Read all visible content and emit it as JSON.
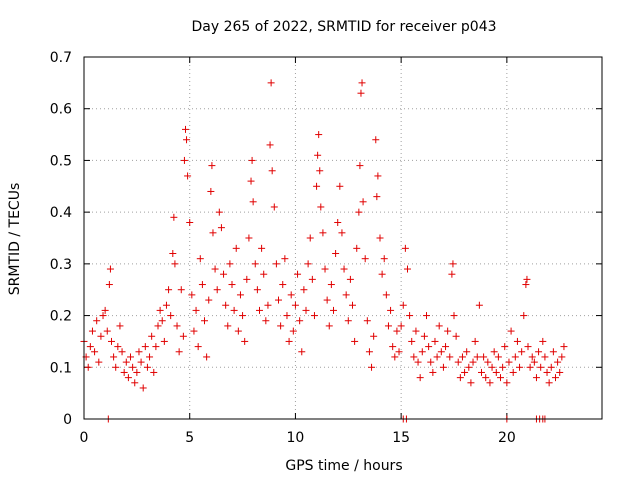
{
  "chart_data": {
    "type": "scatter",
    "title": "Day 265 of 2022, SRMTID for receiver p043",
    "xlabel": "GPS time / hours",
    "ylabel": "SRMTID / TECUs",
    "xlim": [
      0,
      24.5
    ],
    "ylim": [
      0,
      0.7
    ],
    "xticks": [
      0,
      5,
      10,
      15,
      20
    ],
    "yticks": [
      0,
      0.1,
      0.2,
      0.3,
      0.4,
      0.5,
      0.6,
      0.7
    ],
    "xtick_labels": [
      "0",
      "5",
      "10",
      "15",
      "20"
    ],
    "ytick_labels": [
      "0",
      "0.1",
      "0.2",
      "0.3",
      "0.4",
      "0.5",
      "0.6",
      "0.7"
    ],
    "grid": true,
    "marker": "plus",
    "color": "#e00000",
    "series": [
      {
        "name": "SRMTID",
        "points": [
          [
            0.0,
            0.15
          ],
          [
            0.1,
            0.12
          ],
          [
            0.2,
            0.1
          ],
          [
            0.3,
            0.14
          ],
          [
            0.4,
            0.17
          ],
          [
            0.5,
            0.13
          ],
          [
            0.6,
            0.19
          ],
          [
            0.7,
            0.11
          ],
          [
            0.8,
            0.16
          ],
          [
            0.9,
            0.2
          ],
          [
            1.0,
            0.21
          ],
          [
            1.1,
            0.17
          ],
          [
            1.2,
            0.26
          ],
          [
            1.25,
            0.29
          ],
          [
            1.3,
            0.15
          ],
          [
            1.4,
            0.12
          ],
          [
            1.5,
            0.1
          ],
          [
            1.6,
            0.14
          ],
          [
            1.7,
            0.18
          ],
          [
            1.8,
            0.13
          ],
          [
            1.9,
            0.09
          ],
          [
            2.0,
            0.11
          ],
          [
            2.1,
            0.08
          ],
          [
            2.2,
            0.12
          ],
          [
            2.3,
            0.1
          ],
          [
            2.4,
            0.07
          ],
          [
            2.5,
            0.09
          ],
          [
            2.6,
            0.13
          ],
          [
            2.7,
            0.11
          ],
          [
            2.8,
            0.06
          ],
          [
            2.9,
            0.14
          ],
          [
            3.0,
            0.1
          ],
          [
            3.1,
            0.12
          ],
          [
            3.2,
            0.16
          ],
          [
            3.3,
            0.09
          ],
          [
            3.4,
            0.14
          ],
          [
            3.5,
            0.18
          ],
          [
            3.6,
            0.21
          ],
          [
            3.7,
            0.19
          ],
          [
            3.8,
            0.15
          ],
          [
            3.9,
            0.22
          ],
          [
            4.0,
            0.25
          ],
          [
            4.1,
            0.2
          ],
          [
            4.2,
            0.32
          ],
          [
            4.25,
            0.39
          ],
          [
            4.3,
            0.3
          ],
          [
            4.4,
            0.18
          ],
          [
            4.5,
            0.13
          ],
          [
            4.6,
            0.25
          ],
          [
            4.7,
            0.16
          ],
          [
            4.75,
            0.5
          ],
          [
            4.8,
            0.56
          ],
          [
            4.85,
            0.54
          ],
          [
            4.9,
            0.47
          ],
          [
            5.0,
            0.38
          ],
          [
            5.1,
            0.24
          ],
          [
            5.2,
            0.17
          ],
          [
            5.3,
            0.21
          ],
          [
            5.4,
            0.14
          ],
          [
            5.5,
            0.31
          ],
          [
            5.6,
            0.26
          ],
          [
            5.7,
            0.19
          ],
          [
            5.8,
            0.12
          ],
          [
            5.9,
            0.23
          ],
          [
            6.0,
            0.44
          ],
          [
            6.05,
            0.49
          ],
          [
            6.1,
            0.36
          ],
          [
            6.2,
            0.29
          ],
          [
            6.3,
            0.25
          ],
          [
            6.4,
            0.4
          ],
          [
            6.5,
            0.37
          ],
          [
            6.6,
            0.28
          ],
          [
            6.7,
            0.22
          ],
          [
            6.8,
            0.18
          ],
          [
            6.9,
            0.3
          ],
          [
            7.0,
            0.26
          ],
          [
            7.1,
            0.21
          ],
          [
            7.2,
            0.33
          ],
          [
            7.3,
            0.17
          ],
          [
            7.4,
            0.24
          ],
          [
            7.5,
            0.2
          ],
          [
            7.6,
            0.15
          ],
          [
            7.7,
            0.27
          ],
          [
            7.8,
            0.35
          ],
          [
            7.9,
            0.46
          ],
          [
            7.95,
            0.5
          ],
          [
            8.0,
            0.42
          ],
          [
            8.1,
            0.3
          ],
          [
            8.2,
            0.25
          ],
          [
            8.3,
            0.21
          ],
          [
            8.4,
            0.33
          ],
          [
            8.5,
            0.28
          ],
          [
            8.6,
            0.19
          ],
          [
            8.7,
            0.22
          ],
          [
            8.8,
            0.53
          ],
          [
            8.85,
            0.65
          ],
          [
            8.9,
            0.48
          ],
          [
            9.0,
            0.41
          ],
          [
            9.1,
            0.3
          ],
          [
            9.2,
            0.23
          ],
          [
            9.3,
            0.18
          ],
          [
            9.4,
            0.26
          ],
          [
            9.5,
            0.31
          ],
          [
            9.6,
            0.2
          ],
          [
            9.7,
            0.15
          ],
          [
            9.8,
            0.24
          ],
          [
            9.9,
            0.17
          ],
          [
            10.0,
            0.22
          ],
          [
            10.1,
            0.28
          ],
          [
            10.2,
            0.19
          ],
          [
            10.3,
            0.13
          ],
          [
            10.4,
            0.25
          ],
          [
            10.5,
            0.21
          ],
          [
            10.6,
            0.3
          ],
          [
            10.7,
            0.35
          ],
          [
            10.8,
            0.27
          ],
          [
            10.9,
            0.2
          ],
          [
            11.0,
            0.45
          ],
          [
            11.05,
            0.51
          ],
          [
            11.1,
            0.55
          ],
          [
            11.15,
            0.48
          ],
          [
            11.2,
            0.41
          ],
          [
            11.3,
            0.36
          ],
          [
            11.4,
            0.29
          ],
          [
            11.5,
            0.23
          ],
          [
            11.6,
            0.18
          ],
          [
            11.7,
            0.26
          ],
          [
            11.8,
            0.21
          ],
          [
            11.9,
            0.32
          ],
          [
            12.0,
            0.38
          ],
          [
            12.1,
            0.45
          ],
          [
            12.2,
            0.36
          ],
          [
            12.3,
            0.29
          ],
          [
            12.4,
            0.24
          ],
          [
            12.5,
            0.19
          ],
          [
            12.6,
            0.27
          ],
          [
            12.7,
            0.22
          ],
          [
            12.8,
            0.15
          ],
          [
            12.9,
            0.33
          ],
          [
            13.0,
            0.4
          ],
          [
            13.05,
            0.49
          ],
          [
            13.1,
            0.63
          ],
          [
            13.15,
            0.65
          ],
          [
            13.2,
            0.42
          ],
          [
            13.3,
            0.31
          ],
          [
            13.4,
            0.19
          ],
          [
            13.5,
            0.13
          ],
          [
            13.6,
            0.1
          ],
          [
            13.7,
            0.16
          ],
          [
            13.8,
            0.54
          ],
          [
            13.85,
            0.43
          ],
          [
            13.9,
            0.47
          ],
          [
            14.0,
            0.35
          ],
          [
            14.1,
            0.28
          ],
          [
            14.2,
            0.31
          ],
          [
            14.3,
            0.24
          ],
          [
            14.4,
            0.18
          ],
          [
            14.5,
            0.21
          ],
          [
            14.6,
            0.14
          ],
          [
            14.7,
            0.12
          ],
          [
            14.8,
            0.17
          ],
          [
            14.9,
            0.13
          ],
          [
            15.0,
            0.18
          ],
          [
            15.1,
            0.22
          ],
          [
            15.2,
            0.33
          ],
          [
            15.3,
            0.29
          ],
          [
            15.4,
            0.2
          ],
          [
            15.5,
            0.15
          ],
          [
            15.6,
            0.12
          ],
          [
            15.7,
            0.17
          ],
          [
            15.8,
            0.11
          ],
          [
            15.9,
            0.08
          ],
          [
            16.0,
            0.13
          ],
          [
            16.1,
            0.16
          ],
          [
            16.2,
            0.2
          ],
          [
            16.3,
            0.14
          ],
          [
            16.4,
            0.11
          ],
          [
            16.5,
            0.09
          ],
          [
            16.6,
            0.15
          ],
          [
            16.7,
            0.12
          ],
          [
            16.8,
            0.18
          ],
          [
            16.9,
            0.13
          ],
          [
            17.0,
            0.1
          ],
          [
            17.1,
            0.14
          ],
          [
            17.2,
            0.17
          ],
          [
            17.3,
            0.12
          ],
          [
            17.4,
            0.28
          ],
          [
            17.45,
            0.3
          ],
          [
            17.5,
            0.2
          ],
          [
            17.6,
            0.16
          ],
          [
            17.7,
            0.11
          ],
          [
            17.8,
            0.08
          ],
          [
            17.9,
            0.12
          ],
          [
            18.0,
            0.09
          ],
          [
            18.1,
            0.13
          ],
          [
            18.2,
            0.1
          ],
          [
            18.3,
            0.07
          ],
          [
            18.4,
            0.11
          ],
          [
            18.5,
            0.15
          ],
          [
            18.6,
            0.12
          ],
          [
            18.7,
            0.22
          ],
          [
            18.8,
            0.09
          ],
          [
            18.9,
            0.12
          ],
          [
            19.0,
            0.08
          ],
          [
            19.1,
            0.11
          ],
          [
            19.2,
            0.07
          ],
          [
            19.3,
            0.1
          ],
          [
            19.4,
            0.13
          ],
          [
            19.5,
            0.09
          ],
          [
            19.6,
            0.12
          ],
          [
            19.7,
            0.08
          ],
          [
            19.8,
            0.1
          ],
          [
            19.9,
            0.14
          ],
          [
            20.0,
            0.07
          ],
          [
            20.1,
            0.11
          ],
          [
            20.2,
            0.17
          ],
          [
            20.3,
            0.09
          ],
          [
            20.4,
            0.12
          ],
          [
            20.5,
            0.15
          ],
          [
            20.6,
            0.1
          ],
          [
            20.7,
            0.13
          ],
          [
            20.8,
            0.2
          ],
          [
            20.9,
            0.26
          ],
          [
            20.95,
            0.27
          ],
          [
            21.0,
            0.14
          ],
          [
            21.1,
            0.1
          ],
          [
            21.2,
            0.12
          ],
          [
            21.3,
            0.11
          ],
          [
            21.4,
            0.08
          ],
          [
            21.5,
            0.13
          ],
          [
            21.6,
            0.1
          ],
          [
            21.7,
            0.15
          ],
          [
            21.8,
            0.12
          ],
          [
            21.9,
            0.09
          ],
          [
            22.0,
            0.07
          ],
          [
            22.1,
            0.1
          ],
          [
            22.2,
            0.13
          ],
          [
            22.3,
            0.08
          ],
          [
            22.4,
            0.11
          ],
          [
            22.5,
            0.09
          ],
          [
            22.6,
            0.12
          ],
          [
            22.7,
            0.14
          ],
          [
            1.15,
            0.0
          ],
          [
            15.1,
            0.0
          ],
          [
            15.25,
            0.0
          ],
          [
            20.0,
            0.0
          ],
          [
            21.4,
            0.0
          ],
          [
            21.55,
            0.0
          ],
          [
            21.7,
            0.0
          ],
          [
            21.8,
            0.0
          ]
        ]
      }
    ]
  }
}
